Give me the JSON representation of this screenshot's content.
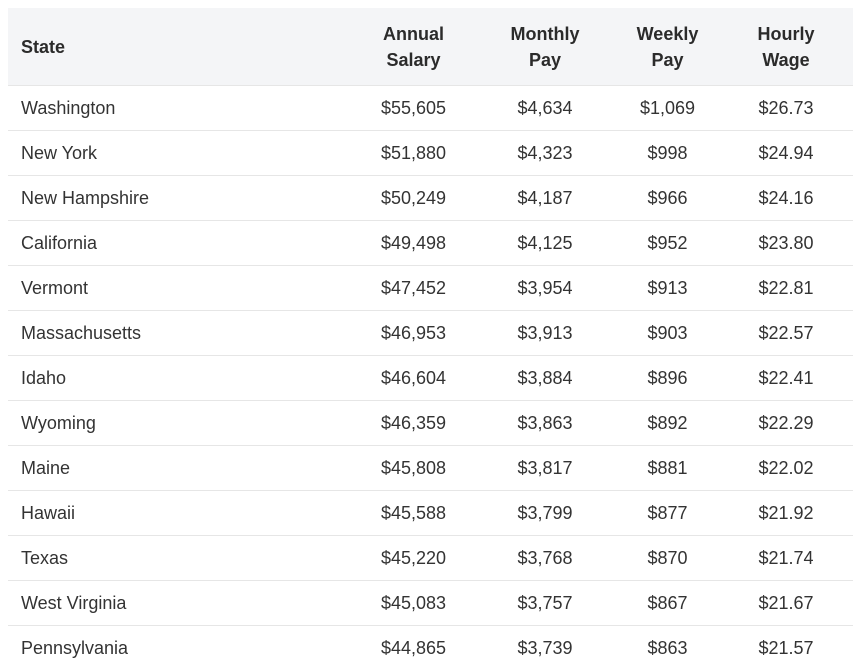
{
  "table": {
    "headers": {
      "state": "State",
      "annual": [
        "Annual",
        "Salary"
      ],
      "monthly": [
        "Monthly",
        "Pay"
      ],
      "weekly": [
        "Weekly",
        "Pay"
      ],
      "hourly": [
        "Hourly",
        "Wage"
      ]
    },
    "rows": [
      {
        "state": "Washington",
        "annual": "$55,605",
        "monthly": "$4,634",
        "weekly": "$1,069",
        "hourly": "$26.73"
      },
      {
        "state": "New York",
        "annual": "$51,880",
        "monthly": "$4,323",
        "weekly": "$998",
        "hourly": "$24.94"
      },
      {
        "state": "New Hampshire",
        "annual": "$50,249",
        "monthly": "$4,187",
        "weekly": "$966",
        "hourly": "$24.16"
      },
      {
        "state": "California",
        "annual": "$49,498",
        "monthly": "$4,125",
        "weekly": "$952",
        "hourly": "$23.80"
      },
      {
        "state": "Vermont",
        "annual": "$47,452",
        "monthly": "$3,954",
        "weekly": "$913",
        "hourly": "$22.81"
      },
      {
        "state": "Massachusetts",
        "annual": "$46,953",
        "monthly": "$3,913",
        "weekly": "$903",
        "hourly": "$22.57"
      },
      {
        "state": "Idaho",
        "annual": "$46,604",
        "monthly": "$3,884",
        "weekly": "$896",
        "hourly": "$22.41"
      },
      {
        "state": "Wyoming",
        "annual": "$46,359",
        "monthly": "$3,863",
        "weekly": "$892",
        "hourly": "$22.29"
      },
      {
        "state": "Maine",
        "annual": "$45,808",
        "monthly": "$3,817",
        "weekly": "$881",
        "hourly": "$22.02"
      },
      {
        "state": "Hawaii",
        "annual": "$45,588",
        "monthly": "$3,799",
        "weekly": "$877",
        "hourly": "$21.92"
      },
      {
        "state": "Texas",
        "annual": "$45,220",
        "monthly": "$3,768",
        "weekly": "$870",
        "hourly": "$21.74"
      },
      {
        "state": "West Virginia",
        "annual": "$45,083",
        "monthly": "$3,757",
        "weekly": "$867",
        "hourly": "$21.67"
      },
      {
        "state": "Pennsylvania",
        "annual": "$44,865",
        "monthly": "$3,739",
        "weekly": "$863",
        "hourly": "$21.57"
      }
    ]
  }
}
